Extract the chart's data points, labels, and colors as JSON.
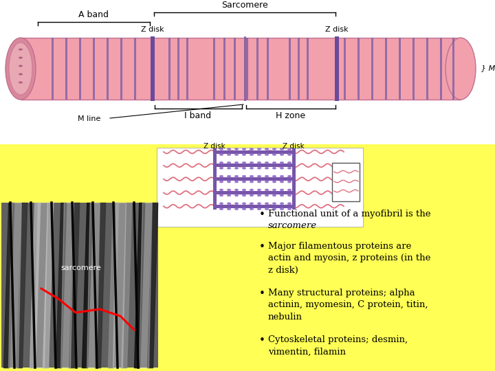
{
  "background_color": "#FFFF55",
  "top_panel_color": "#FFFFFF",
  "bullet_points": [
    {
      "normal": "Functional unit of a myofibril is the ",
      "italic": "sarcomere"
    },
    {
      "normal": "Major filamentous proteins are actin and myosin, z proteins (in the z disk)"
    },
    {
      "normal": "Many structural proteins; alpha actinin, myomesin, C protein, titin, nebulin"
    },
    {
      "normal": "Cytoskeletal proteins; desmin, vimentin, filamin"
    }
  ],
  "tube_color": "#F2A0AC",
  "stripe_color": "#7B5EA7",
  "z_color": "#6A4A9A",
  "actin_col": "#E07080",
  "myosin_col": "#7755AA",
  "label_color": "#000000",
  "fs": 9
}
